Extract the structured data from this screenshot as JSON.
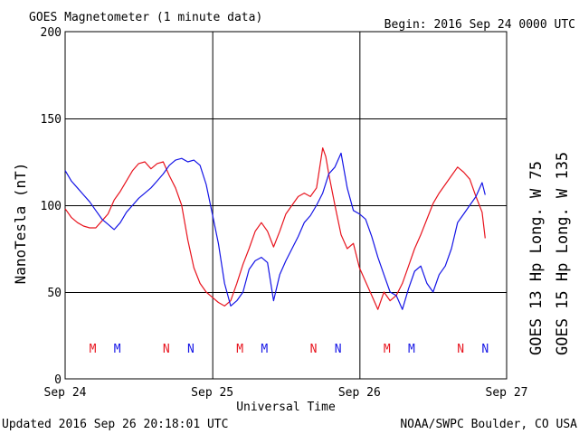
{
  "header": {
    "title": "GOES Magnetometer (1 minute data)",
    "begin": "Begin:  2016 Sep 24 0000 UTC"
  },
  "footer": {
    "updated": "Updated 2016 Sep 26 20:18:01 UTC",
    "credit": "NOAA/SWPC Boulder, CO USA"
  },
  "colors": {
    "goes13": "#e8141e",
    "goes15": "#1414e6",
    "grid": "#000000"
  },
  "chart_data": {
    "type": "line",
    "title": "GOES Magnetometer (1 minute data)",
    "xlabel": "Universal Time",
    "ylabel": "NanoTesla (nT)",
    "xlim": [
      0,
      72
    ],
    "ylim": [
      0,
      200
    ],
    "x_unit": "hours since 2016 Sep 24 0000 UTC",
    "y_ticks": [
      0,
      50,
      100,
      150,
      200
    ],
    "x_ticks": [
      {
        "x": 0,
        "label": "Sep 24"
      },
      {
        "x": 24,
        "label": "Sep 25"
      },
      {
        "x": 48,
        "label": "Sep 26"
      },
      {
        "x": 72,
        "label": "Sep 27"
      }
    ],
    "grid": true,
    "legend_position": "right, vertical",
    "noon_midnight_markers": [
      {
        "x": 4.5,
        "label": "M",
        "series": "GOES 13"
      },
      {
        "x": 8.5,
        "label": "M",
        "series": "GOES 15"
      },
      {
        "x": 16.5,
        "label": "N",
        "series": "GOES 13"
      },
      {
        "x": 20.5,
        "label": "N",
        "series": "GOES 15"
      },
      {
        "x": 28.5,
        "label": "M",
        "series": "GOES 13"
      },
      {
        "x": 32.5,
        "label": "M",
        "series": "GOES 15"
      },
      {
        "x": 40.5,
        "label": "N",
        "series": "GOES 13"
      },
      {
        "x": 44.5,
        "label": "N",
        "series": "GOES 15"
      },
      {
        "x": 52.5,
        "label": "M",
        "series": "GOES 13"
      },
      {
        "x": 56.5,
        "label": "M",
        "series": "GOES 15"
      },
      {
        "x": 64.5,
        "label": "N",
        "series": "GOES 13"
      },
      {
        "x": 68.5,
        "label": "N",
        "series": "GOES 15"
      }
    ],
    "series": [
      {
        "name": "GOES 13 Hp  Long. W 75",
        "color": "#e8141e",
        "x": [
          0,
          1,
          2,
          3,
          4,
          5,
          6,
          7,
          8,
          9,
          10,
          11,
          12,
          13,
          14,
          15,
          16,
          17,
          18,
          19,
          20,
          21,
          22,
          23,
          24,
          25,
          26,
          27,
          28,
          29,
          30,
          31,
          32,
          33,
          34,
          35,
          36,
          37,
          38,
          39,
          40,
          41,
          42,
          42.5,
          43,
          44,
          45,
          46,
          47,
          48,
          49,
          50,
          51,
          52,
          53,
          54,
          55,
          56,
          57,
          58,
          59,
          60,
          61,
          62,
          63,
          64,
          65,
          66,
          67,
          68,
          68.5
        ],
        "values": [
          98,
          93,
          90,
          88,
          87,
          87,
          91,
          95,
          103,
          108,
          114,
          120,
          124,
          125,
          121,
          124,
          125,
          117,
          110,
          100,
          80,
          64,
          55,
          50,
          47,
          44,
          42,
          45,
          55,
          66,
          75,
          85,
          90,
          85,
          76,
          85,
          95,
          100,
          105,
          107,
          105,
          110,
          133,
          128,
          118,
          100,
          83,
          75,
          78,
          64,
          56,
          48,
          40,
          50,
          45,
          48,
          55,
          65,
          75,
          83,
          92,
          101,
          107,
          112,
          117,
          122,
          119,
          115,
          105,
          96,
          81
        ]
      },
      {
        "name": "GOES 15 Hp  Long. W 135",
        "color": "#1414e6",
        "x": [
          0,
          1,
          2,
          3,
          4,
          5,
          6,
          7,
          8,
          9,
          10,
          11,
          12,
          13,
          14,
          15,
          16,
          17,
          18,
          19,
          20,
          21,
          22,
          23,
          24,
          25,
          26,
          27,
          28,
          29,
          30,
          31,
          32,
          33,
          34,
          35,
          36,
          37,
          38,
          39,
          40,
          41,
          42,
          43,
          44,
          45,
          46,
          47,
          48,
          49,
          50,
          51,
          52,
          53,
          54,
          55,
          56,
          57,
          58,
          59,
          60,
          61,
          62,
          63,
          64,
          65,
          66,
          67,
          68,
          68.5
        ],
        "values": [
          120,
          114,
          110,
          106,
          102,
          97,
          92,
          89,
          86,
          90,
          96,
          100,
          104,
          107,
          110,
          114,
          118,
          123,
          126,
          127,
          125,
          126,
          123,
          112,
          95,
          78,
          55,
          42,
          45,
          50,
          63,
          68,
          70,
          67,
          45,
          60,
          68,
          75,
          82,
          90,
          94,
          100,
          107,
          118,
          122,
          130,
          110,
          97,
          95,
          92,
          82,
          70,
          60,
          50,
          48,
          40,
          52,
          62,
          65,
          55,
          50,
          60,
          65,
          75,
          90,
          95,
          100,
          105,
          113,
          106
        ]
      }
    ]
  }
}
